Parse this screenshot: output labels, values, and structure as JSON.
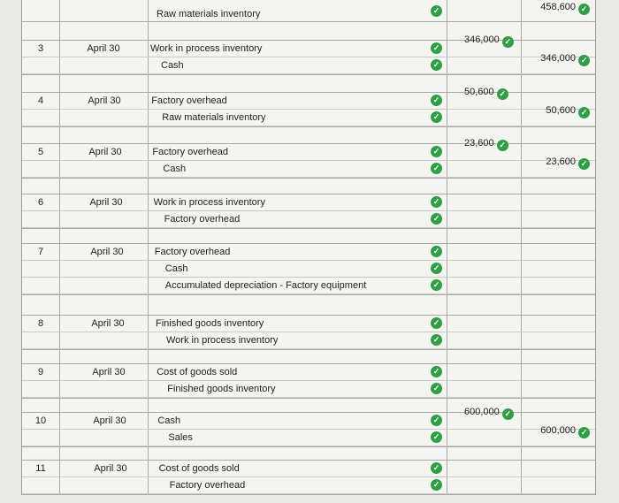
{
  "header_row": {
    "account": "Raw materials inventory",
    "credit": "458,600"
  },
  "entries": [
    {
      "num": "3",
      "date": "April 30",
      "lines": [
        {
          "account": "Work in process inventory",
          "debit": "346,000",
          "credit": ""
        },
        {
          "account": "Cash",
          "debit": "",
          "credit": "346,000"
        }
      ]
    },
    {
      "num": "4",
      "date": "April 30",
      "lines": [
        {
          "account": "Factory overhead",
          "debit": "50,600",
          "credit": ""
        },
        {
          "account": "Raw materials inventory",
          "debit": "",
          "credit": "50,600"
        }
      ]
    },
    {
      "num": "5",
      "date": "April 30",
      "lines": [
        {
          "account": "Factory overhead",
          "debit": "23,600",
          "credit": ""
        },
        {
          "account": "Cash",
          "debit": "",
          "credit": "23,600"
        }
      ]
    },
    {
      "num": "6",
      "date": "April 30",
      "lines": [
        {
          "account": "Work in process inventory",
          "debit": "",
          "credit": ""
        },
        {
          "account": "Factory overhead",
          "debit": "",
          "credit": ""
        }
      ]
    },
    {
      "num": "7",
      "date": "April 30",
      "lines": [
        {
          "account": "Factory overhead",
          "debit": "",
          "credit": ""
        },
        {
          "account": "Cash",
          "debit": "",
          "credit": ""
        },
        {
          "account": "Accumulated depreciation - Factory equipment",
          "debit": "",
          "credit": ""
        }
      ]
    },
    {
      "num": "8",
      "date": "April 30",
      "lines": [
        {
          "account": "Finished goods inventory",
          "debit": "",
          "credit": ""
        },
        {
          "account": "Work in process inventory",
          "debit": "",
          "credit": ""
        }
      ]
    },
    {
      "num": "9",
      "date": "April 30",
      "lines": [
        {
          "account": "Cost of goods sold",
          "debit": "",
          "credit": ""
        },
        {
          "account": "Finished goods inventory",
          "debit": "",
          "credit": ""
        }
      ]
    },
    {
      "num": "10",
      "date": "April 30",
      "lines": [
        {
          "account": "Cash",
          "debit": "600,000",
          "credit": ""
        },
        {
          "account": "Sales",
          "debit": "",
          "credit": "600,000"
        }
      ]
    },
    {
      "num": "11",
      "date": "April 30",
      "lines": [
        {
          "account": "Cost of goods sold",
          "debit": "",
          "credit": ""
        },
        {
          "account": "Factory overhead",
          "debit": "",
          "credit": ""
        }
      ]
    }
  ],
  "check_symbol": "✓",
  "colors": {
    "check": "#2f9e44"
  }
}
